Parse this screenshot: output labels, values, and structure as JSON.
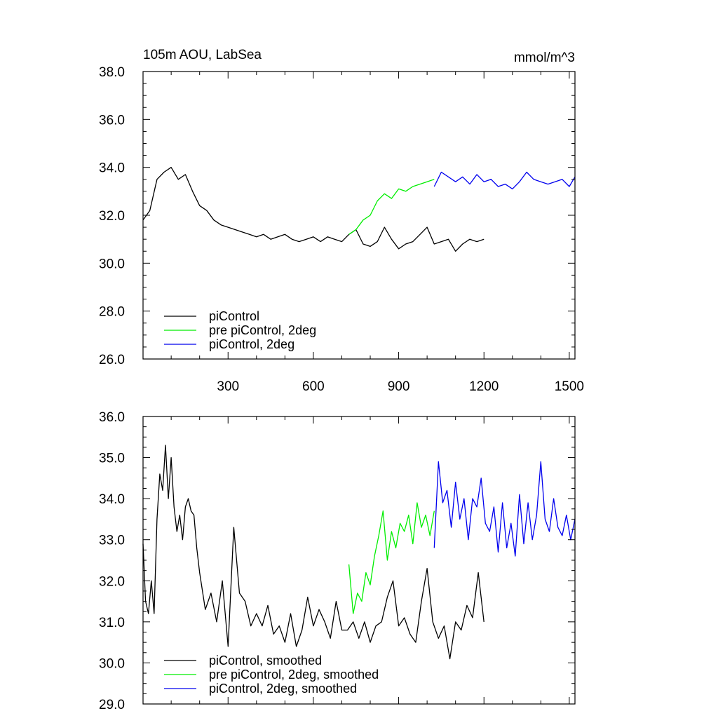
{
  "chart_data": [
    {
      "type": "line",
      "title": "105m AOU, LabSea",
      "units": "mmol/m^3",
      "xlabel": "",
      "ylabel": "",
      "xlim": [
        1,
        1520
      ],
      "ylim": [
        26.0,
        38.0
      ],
      "x_ticks": [
        300,
        600,
        900,
        1200,
        1500
      ],
      "y_ticks": [
        "26.0",
        "28.0",
        "30.0",
        "32.0",
        "34.0",
        "36.0",
        "38.0"
      ],
      "grid": false,
      "legend_position": "bottom-left",
      "series": [
        {
          "name": "piControl",
          "color": "#000000",
          "x": [
            1,
            25,
            50,
            75,
            100,
            125,
            150,
            175,
            200,
            225,
            250,
            275,
            300,
            325,
            350,
            375,
            400,
            425,
            450,
            475,
            500,
            525,
            550,
            575,
            600,
            625,
            650,
            675,
            700,
            725,
            750,
            775,
            800,
            825,
            850,
            875,
            900,
            925,
            950,
            975,
            1000,
            1025,
            1050,
            1075,
            1100,
            1125,
            1150,
            1175,
            1200
          ],
          "y": [
            31.8,
            32.2,
            33.5,
            33.8,
            34.0,
            33.5,
            33.7,
            33.0,
            32.4,
            32.2,
            31.8,
            31.6,
            31.5,
            31.4,
            31.3,
            31.2,
            31.1,
            31.2,
            31.0,
            31.1,
            31.2,
            31.0,
            30.9,
            31.0,
            31.1,
            30.9,
            31.1,
            31.0,
            30.9,
            31.2,
            31.4,
            30.8,
            30.7,
            30.9,
            31.5,
            31.0,
            30.6,
            30.8,
            30.9,
            31.2,
            31.5,
            30.8,
            30.9,
            31.0,
            30.5,
            30.8,
            31.0,
            30.9,
            31.0
          ]
        },
        {
          "name": "pre piControl, 2deg",
          "color": "#00ee00",
          "x": [
            725,
            750,
            775,
            800,
            825,
            850,
            875,
            900,
            925,
            950,
            975,
            1000,
            1025
          ],
          "y": [
            31.2,
            31.4,
            31.8,
            32.0,
            32.6,
            32.9,
            32.7,
            33.1,
            33.0,
            33.2,
            33.3,
            33.4,
            33.5
          ]
        },
        {
          "name": "piControl, 2deg",
          "color": "#0000ee",
          "x": [
            1025,
            1050,
            1075,
            1100,
            1125,
            1150,
            1175,
            1200,
            1225,
            1250,
            1275,
            1300,
            1325,
            1350,
            1375,
            1400,
            1425,
            1450,
            1475,
            1500,
            1520
          ],
          "y": [
            33.2,
            33.8,
            33.6,
            33.4,
            33.6,
            33.3,
            33.7,
            33.4,
            33.5,
            33.2,
            33.3,
            33.1,
            33.4,
            33.8,
            33.5,
            33.4,
            33.3,
            33.4,
            33.5,
            33.2,
            33.6
          ]
        }
      ]
    },
    {
      "type": "line",
      "title": "",
      "xlabel": "",
      "ylabel": "",
      "xlim": [
        1,
        1520
      ],
      "ylim": [
        29.0,
        36.0
      ],
      "x_ticks": [
        300,
        600,
        900,
        1200,
        1500
      ],
      "y_ticks": [
        "29.0",
        "30.0",
        "31.0",
        "32.0",
        "33.0",
        "34.0",
        "35.0",
        "36.0"
      ],
      "grid": false,
      "legend_position": "bottom-left",
      "series": [
        {
          "name": "piControl, smoothed",
          "color": "#000000",
          "x": [
            1,
            10,
            20,
            30,
            40,
            50,
            60,
            70,
            80,
            90,
            100,
            110,
            120,
            130,
            140,
            150,
            160,
            170,
            180,
            190,
            200,
            220,
            240,
            260,
            280,
            300,
            320,
            340,
            360,
            380,
            400,
            420,
            440,
            460,
            480,
            500,
            520,
            540,
            560,
            580,
            600,
            620,
            640,
            660,
            680,
            700,
            720,
            740,
            760,
            780,
            800,
            820,
            840,
            860,
            880,
            900,
            920,
            940,
            960,
            980,
            1000,
            1020,
            1040,
            1060,
            1080,
            1100,
            1120,
            1140,
            1160,
            1180,
            1200
          ],
          "y": [
            32.9,
            31.5,
            31.2,
            32.0,
            31.2,
            33.5,
            34.6,
            34.2,
            35.3,
            34.0,
            35.0,
            33.8,
            33.2,
            33.6,
            33.0,
            33.8,
            34.0,
            33.7,
            33.6,
            32.8,
            32.2,
            31.3,
            31.7,
            31.0,
            32.0,
            30.4,
            33.3,
            31.7,
            31.5,
            30.9,
            31.2,
            30.9,
            31.4,
            30.7,
            30.9,
            30.5,
            31.2,
            30.4,
            30.8,
            31.6,
            30.9,
            31.3,
            31.0,
            30.6,
            31.5,
            30.8,
            30.8,
            31.0,
            30.6,
            31.0,
            30.5,
            30.9,
            31.0,
            31.6,
            32.0,
            30.9,
            31.1,
            30.7,
            30.5,
            31.5,
            32.3,
            31.0,
            30.6,
            30.9,
            30.1,
            31.0,
            30.8,
            31.4,
            31.1,
            32.2,
            31.0
          ]
        },
        {
          "name": "pre piControl, 2deg, smoothed",
          "color": "#00ee00",
          "x": [
            725,
            740,
            755,
            770,
            785,
            800,
            815,
            830,
            845,
            860,
            875,
            890,
            905,
            920,
            935,
            950,
            965,
            980,
            995,
            1010,
            1025
          ],
          "y": [
            32.4,
            31.2,
            31.7,
            31.5,
            32.2,
            31.9,
            32.6,
            33.1,
            33.7,
            32.5,
            33.2,
            32.8,
            33.4,
            33.2,
            33.6,
            32.9,
            33.9,
            33.3,
            33.6,
            33.1,
            33.7
          ]
        },
        {
          "name": "piControl, 2deg, smoothed",
          "color": "#0000ee",
          "x": [
            1025,
            1040,
            1055,
            1070,
            1085,
            1100,
            1115,
            1130,
            1145,
            1160,
            1175,
            1190,
            1205,
            1220,
            1235,
            1250,
            1265,
            1280,
            1295,
            1310,
            1325,
            1340,
            1355,
            1370,
            1385,
            1400,
            1415,
            1430,
            1445,
            1460,
            1475,
            1490,
            1505,
            1520
          ],
          "y": [
            32.8,
            34.9,
            33.9,
            34.2,
            33.3,
            34.4,
            33.5,
            34.0,
            33.0,
            34.0,
            33.8,
            34.5,
            33.4,
            33.2,
            33.8,
            32.7,
            33.9,
            32.8,
            33.4,
            32.6,
            34.1,
            32.9,
            33.9,
            33.0,
            33.6,
            34.9,
            33.5,
            33.2,
            34.0,
            33.3,
            33.1,
            33.6,
            33.0,
            33.5
          ]
        }
      ]
    }
  ]
}
